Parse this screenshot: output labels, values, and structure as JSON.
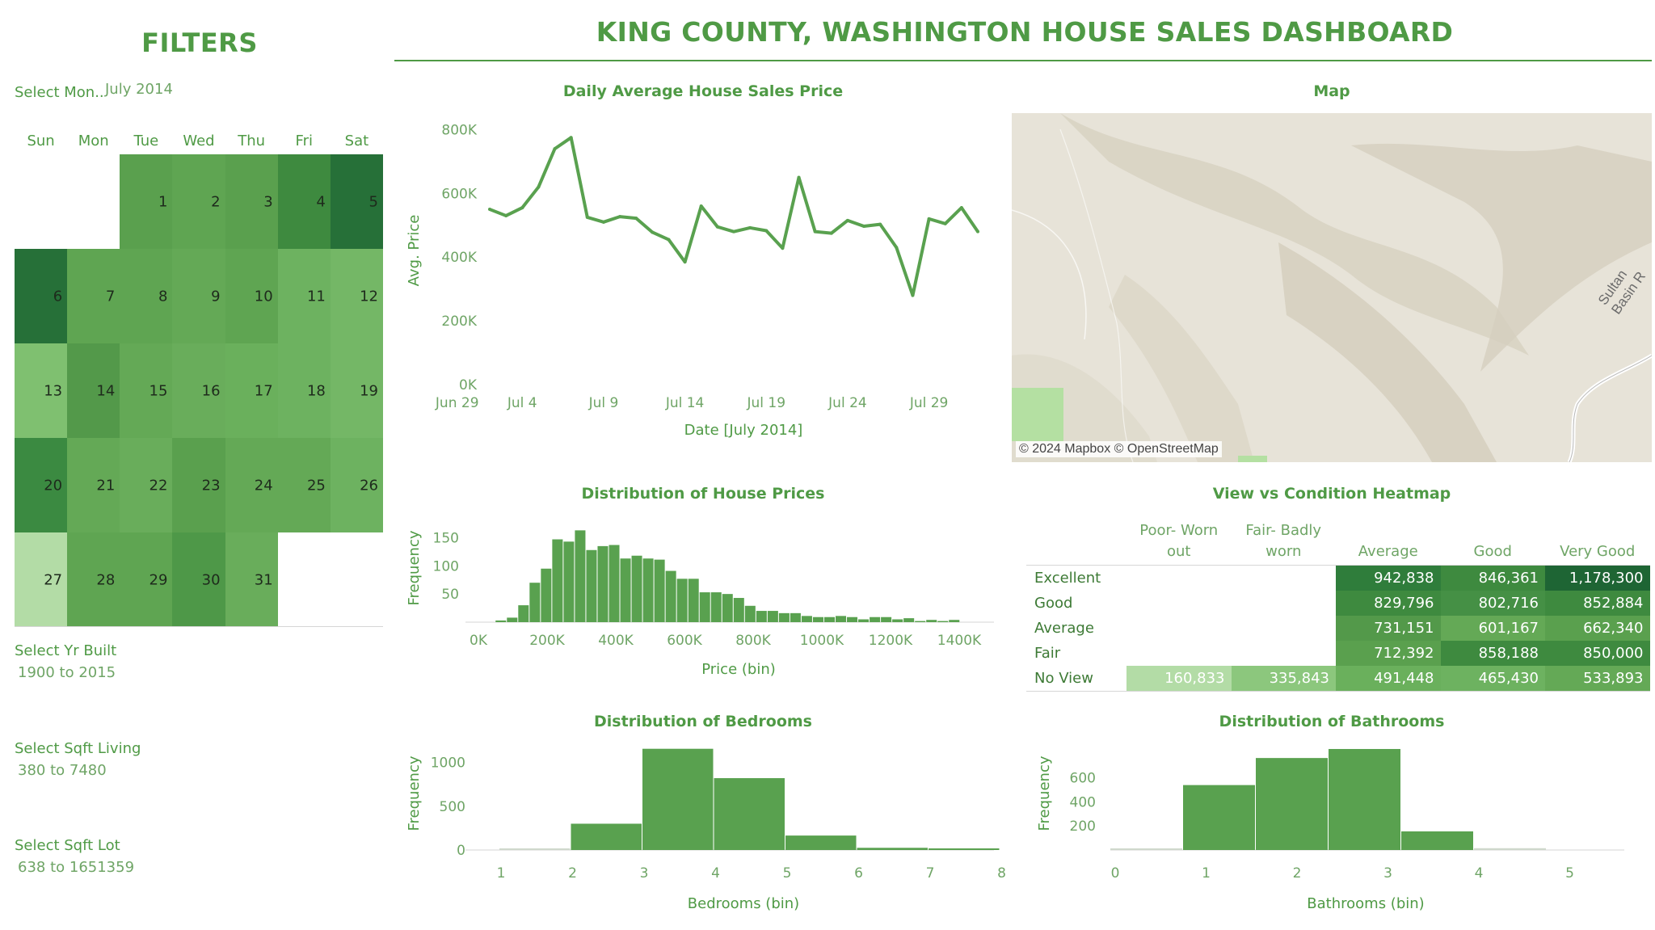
{
  "header": {
    "filters_title": "FILTERS",
    "dashboard_title": "KING COUNTY, WASHINGTON HOUSE SALES DASHBOARD"
  },
  "filters": {
    "month_label": "Select Mon..",
    "month_value": "July 2014",
    "yr_built_label": "Select Yr Built",
    "yr_built_value": "1900 to 2015",
    "sqft_living_label": "Select Sqft Living",
    "sqft_living_value": "380 to 7480",
    "sqft_lot_label": "Select Sqft Lot",
    "sqft_lot_value": "638 to 1651359"
  },
  "calendar": {
    "weekdays": [
      "Sun",
      "Mon",
      "Tue",
      "Wed",
      "Thu",
      "Fri",
      "Sat"
    ],
    "start_weekday_index": 2,
    "days": [
      {
        "d": "1",
        "c": "#5aa04e"
      },
      {
        "d": "2",
        "c": "#5fa552"
      },
      {
        "d": "3",
        "c": "#5aa04e"
      },
      {
        "d": "4",
        "c": "#3e8a3f"
      },
      {
        "d": "5",
        "c": "#267038"
      },
      {
        "d": "6",
        "c": "#267038"
      },
      {
        "d": "7",
        "c": "#5fa552"
      },
      {
        "d": "8",
        "c": "#5fa552"
      },
      {
        "d": "9",
        "c": "#64a956"
      },
      {
        "d": "10",
        "c": "#5fa552"
      },
      {
        "d": "11",
        "c": "#6db260"
      },
      {
        "d": "12",
        "c": "#74b766"
      },
      {
        "d": "13",
        "c": "#7fc070"
      },
      {
        "d": "14",
        "c": "#53994a"
      },
      {
        "d": "15",
        "c": "#64a956"
      },
      {
        "d": "16",
        "c": "#69ad5b"
      },
      {
        "d": "17",
        "c": "#6ab05c"
      },
      {
        "d": "18",
        "c": "#6db260"
      },
      {
        "d": "19",
        "c": "#74b766"
      },
      {
        "d": "20",
        "c": "#3b8a41"
      },
      {
        "d": "21",
        "c": "#64a956"
      },
      {
        "d": "22",
        "c": "#69ad5b"
      },
      {
        "d": "23",
        "c": "#5aa04e"
      },
      {
        "d": "24",
        "c": "#64a956"
      },
      {
        "d": "25",
        "c": "#64a956"
      },
      {
        "d": "26",
        "c": "#6db260"
      },
      {
        "d": "27",
        "c": "#b3dca6"
      },
      {
        "d": "28",
        "c": "#5fa552"
      },
      {
        "d": "29",
        "c": "#5fa552"
      },
      {
        "d": "30",
        "c": "#4e9848"
      },
      {
        "d": "31",
        "c": "#69ad5b"
      }
    ]
  },
  "map": {
    "title": "Map",
    "credit": "© 2024 Mapbox © OpenStreetMap",
    "road_label": "Sultan Basin R"
  },
  "heatmap": {
    "title": "View vs Condition Heatmap",
    "columns": [
      "Poor- Worn out",
      "Fair- Badly worn",
      "Average",
      "Good",
      "Very Good"
    ],
    "rows": [
      {
        "label": "Excellent",
        "cells": [
          {
            "v": "",
            "c": ""
          },
          {
            "v": "",
            "c": ""
          },
          {
            "v": "942,838",
            "c": "#2f7d3b"
          },
          {
            "v": "846,361",
            "c": "#3e8a3f"
          },
          {
            "v": "1,178,300",
            "c": "#1e6534"
          }
        ]
      },
      {
        "label": "Good",
        "cells": [
          {
            "v": "",
            "c": ""
          },
          {
            "v": "",
            "c": ""
          },
          {
            "v": "829,796",
            "c": "#3e8a3f"
          },
          {
            "v": "802,716",
            "c": "#459045"
          },
          {
            "v": "852,884",
            "c": "#3e8a3f"
          }
        ]
      },
      {
        "label": "Average",
        "cells": [
          {
            "v": "",
            "c": ""
          },
          {
            "v": "",
            "c": ""
          },
          {
            "v": "731,151",
            "c": "#53994a"
          },
          {
            "v": "601,167",
            "c": "#64a956"
          },
          {
            "v": "662,340",
            "c": "#5aa04e"
          }
        ]
      },
      {
        "label": "Fair",
        "cells": [
          {
            "v": "",
            "c": ""
          },
          {
            "v": "",
            "c": ""
          },
          {
            "v": "712,392",
            "c": "#5aa04e"
          },
          {
            "v": "858,188",
            "c": "#3e8a3f"
          },
          {
            "v": "850,000",
            "c": "#3e8a3f"
          }
        ]
      },
      {
        "label": "No View",
        "cells": [
          {
            "v": "160,833",
            "c": "#b3dca6"
          },
          {
            "v": "335,843",
            "c": "#8cc77d"
          },
          {
            "v": "491,448",
            "c": "#6ab05c"
          },
          {
            "v": "465,430",
            "c": "#6db260"
          },
          {
            "v": "533,893",
            "c": "#64a956"
          }
        ]
      }
    ]
  },
  "chart_data": [
    {
      "type": "line",
      "title": "Daily Average House Sales Price",
      "xlabel": "Date [July 2014]",
      "ylabel": "Avg. Price",
      "x_ticks": [
        "Jun 29",
        "Jul 4",
        "Jul 9",
        "Jul 14",
        "Jul 19",
        "Jul 24",
        "Jul 29"
      ],
      "y_ticks": [
        "0K",
        "200K",
        "400K",
        "600K",
        "800K"
      ],
      "ylim": [
        0,
        800000
      ],
      "x": [
        1,
        2,
        3,
        4,
        5,
        6,
        7,
        8,
        9,
        10,
        11,
        12,
        13,
        14,
        15,
        16,
        17,
        18,
        19,
        20,
        21,
        22,
        23,
        24,
        25,
        26,
        27,
        28,
        29,
        30,
        31
      ],
      "values": [
        550000,
        530000,
        555000,
        620000,
        740000,
        775000,
        525000,
        510000,
        527000,
        522000,
        478000,
        455000,
        385000,
        560000,
        495000,
        480000,
        492000,
        483000,
        428000,
        650000,
        480000,
        475000,
        515000,
        497000,
        503000,
        430000,
        280000,
        520000,
        505000,
        555000,
        480000
      ]
    },
    {
      "type": "bar",
      "title": "Distribution of House Prices",
      "xlabel": "Price (bin)",
      "ylabel": "Frequency",
      "x_ticks": [
        "0K",
        "200K",
        "400K",
        "600K",
        "800K",
        "1000K",
        "1200K",
        "1400K"
      ],
      "y_ticks": [
        "50",
        "100",
        "150"
      ],
      "bin_width": 33000,
      "bin_start": 50000,
      "values": [
        3,
        8,
        30,
        70,
        95,
        147,
        143,
        163,
        128,
        135,
        137,
        113,
        118,
        113,
        111,
        91,
        77,
        77,
        53,
        53,
        50,
        43,
        29,
        20,
        20,
        16,
        16,
        11,
        9,
        9,
        11,
        9,
        5,
        9,
        9,
        5,
        7,
        2,
        4,
        2,
        4
      ],
      "ylim": [
        0,
        175
      ]
    },
    {
      "type": "bar",
      "title": "Distribution of Bedrooms",
      "xlabel": "Bedrooms (bin)",
      "ylabel": "Frequency",
      "x_ticks": [
        "1",
        "2",
        "3",
        "4",
        "5",
        "6",
        "7",
        "8"
      ],
      "y_ticks": [
        "0",
        "500",
        "1000"
      ],
      "categories": [
        "1",
        "2",
        "3",
        "4",
        "5",
        "6",
        "7"
      ],
      "values": [
        12,
        300,
        1155,
        820,
        165,
        25,
        5
      ],
      "ylim": [
        0,
        1180
      ]
    },
    {
      "type": "bar",
      "title": "Distribution of Bathrooms",
      "xlabel": "Bathrooms (bin)",
      "ylabel": "Frequency",
      "x_ticks": [
        "0",
        "1",
        "2",
        "3",
        "4",
        "5"
      ],
      "y_ticks": [
        "200",
        "400",
        "600"
      ],
      "categories": [
        "0",
        "1",
        "2",
        "3",
        "4",
        "5"
      ],
      "values": [
        10,
        540,
        765,
        840,
        155,
        15
      ],
      "ylim": [
        0,
        860
      ]
    }
  ]
}
